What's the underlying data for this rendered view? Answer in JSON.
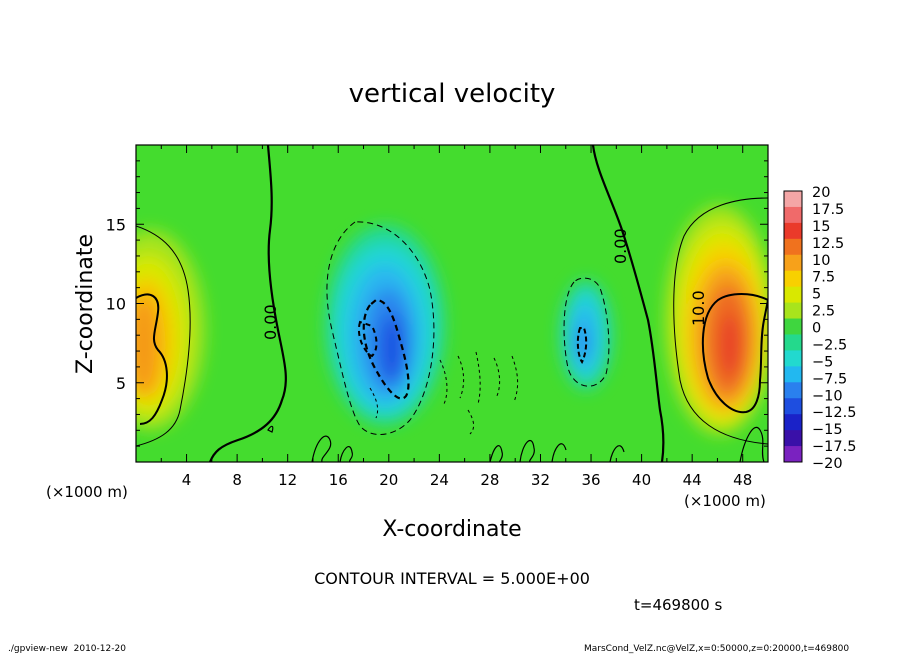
{
  "chart_data": {
    "type": "heatmap",
    "title": "vertical velocity",
    "xlabel": "X-coordinate",
    "ylabel": "Z-coordinate",
    "x_unit": "(×1000 m)",
    "z_unit": "(×1000 m)",
    "xlim": [
      0,
      50
    ],
    "ylim": [
      0,
      20
    ],
    "x_ticks": [
      "4",
      "8",
      "12",
      "16",
      "20",
      "24",
      "28",
      "32",
      "36",
      "40",
      "44",
      "48"
    ],
    "y_ticks": [
      "5",
      "10",
      "15"
    ],
    "colorbar_levels": [
      "20",
      "17.5",
      "15",
      "12.5",
      "10",
      "7.5",
      "5",
      "2.5",
      "0",
      "−2.5",
      "−5",
      "−7.5",
      "−10",
      "−12.5",
      "−15",
      "−17.5",
      "−20"
    ],
    "colorbar_colors": [
      "#f4a6a6",
      "#f06a6a",
      "#ea3a2a",
      "#f0721e",
      "#f7a11a",
      "#f8d000",
      "#d9e800",
      "#a8e41c",
      "#3fd63f",
      "#24d98c",
      "#22d9cf",
      "#22b8f0",
      "#2a80ee",
      "#1e4ee0",
      "#1a22c8",
      "#3a10a8",
      "#7a22c0"
    ],
    "contour_interval": "CONTOUR INTERVAL = 5.000E+00",
    "contour_labels": [
      "0.00",
      "0.00",
      "10.0"
    ],
    "time": "t=469800 s",
    "footer_left": "./gpview-new  2010-12-20",
    "footer_right": "MarsCond_VelZ.nc@VelZ,x=0:50000,z=0:20000,t=469800",
    "features": [
      {
        "kind": "updraft",
        "x": 2,
        "z": 8,
        "peak": 12
      },
      {
        "kind": "downdraft",
        "x": 19.5,
        "z": 7.5,
        "peak": -12
      },
      {
        "kind": "downdraft",
        "x": 35.5,
        "z": 8,
        "peak": -10
      },
      {
        "kind": "updraft",
        "x": 46.5,
        "z": 8,
        "peak": 15
      }
    ]
  }
}
